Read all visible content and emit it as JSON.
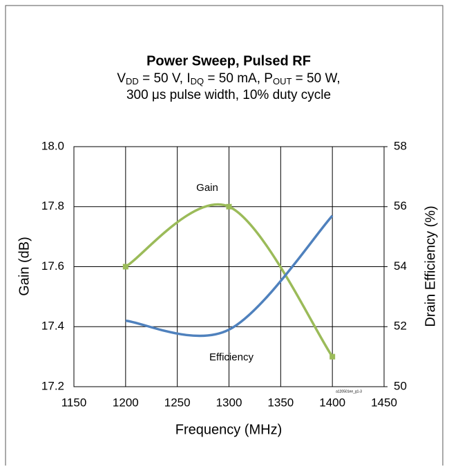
{
  "chart_data": {
    "type": "line",
    "title": "Power Sweep, Pulsed RF",
    "subtitle": [
      [
        "V",
        "DD",
        " = 50 V, I",
        "DQ",
        " = 50 mA, P",
        "OUT",
        " = 50 W,"
      ],
      [
        "300 μs pulse width, 10% duty cycle"
      ]
    ],
    "x_label": "Frequency  (MHz)",
    "y_label": "Gain (dB)",
    "y2_label": "Drain Efficiency (%)",
    "annotations": [
      "Gain",
      "Efficiency",
      "a120501ee_g1-3"
    ],
    "x": [
      1200,
      1300,
      1400
    ],
    "series": [
      {
        "name": "Gain",
        "color": "#9bbb59",
        "values": [
          17.6,
          17.8,
          17.3
        ],
        "markers": true
      },
      {
        "name": "Efficiency",
        "color": "#4f81bd",
        "values": [
          52.2,
          51.9,
          55.7
        ],
        "axis": "y2",
        "markers": false
      }
    ],
    "xlim": [
      1150,
      1450
    ],
    "xticks": [
      1150,
      1200,
      1250,
      1300,
      1350,
      1400,
      1450
    ],
    "ylim": [
      17.2,
      18.0
    ],
    "yticks": [
      17.2,
      17.4,
      17.6,
      17.8,
      {
        "value": 18.0,
        "label": "18.0"
      }
    ],
    "y2lim": [
      50,
      58
    ],
    "y2ticks": [
      50,
      52,
      54,
      56,
      58
    ],
    "grid": true,
    "smooth": true
  }
}
